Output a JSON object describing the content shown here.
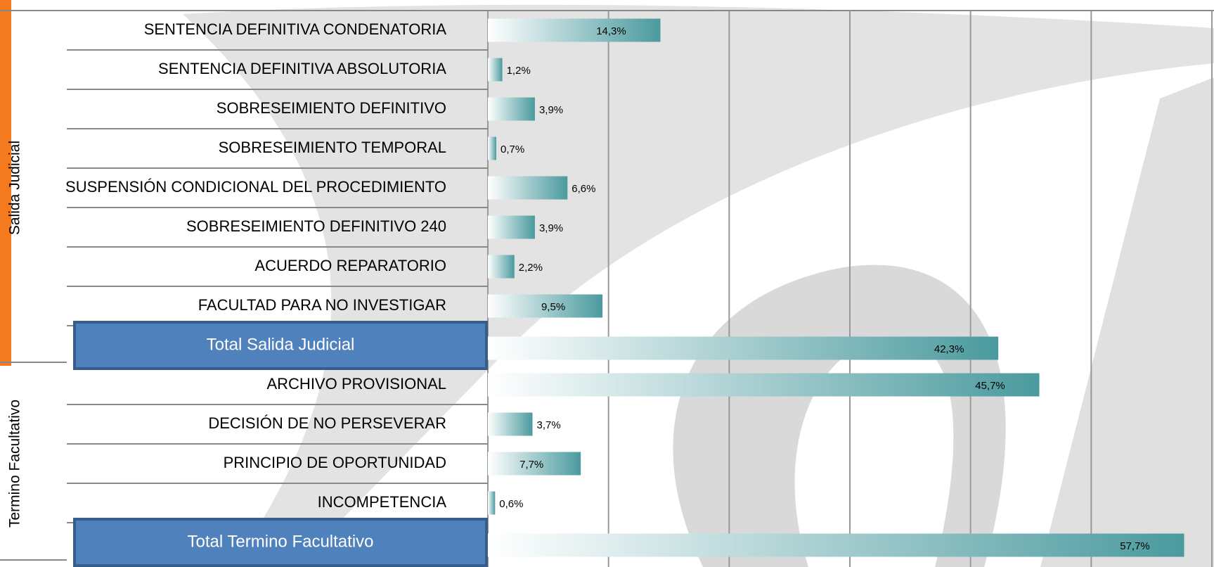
{
  "chart_data": {
    "type": "bar",
    "orientation": "horizontal",
    "color": "#4a9a9e",
    "xlim": [
      0,
      60
    ],
    "xticks": [
      0,
      10,
      20,
      30,
      40,
      50,
      60
    ],
    "grid": true,
    "groups": [
      {
        "name": "Salida Judicial",
        "categories": [
          "SENTENCIA DEFINITIVA CONDENATORIA",
          "SENTENCIA DEFINITIVA ABSOLUTORIA",
          "SOBRESEIMIENTO DEFINITIVO",
          "SOBRESEIMIENTO TEMPORAL",
          "SUSPENSIÓN CONDICIONAL DEL PROCEDIMIENTO",
          "SOBRESEIMIENTO DEFINITIVO 240",
          "ACUERDO REPARATORIO",
          "FACULTAD PARA NO INVESTIGAR"
        ],
        "values": [
          14.3,
          1.2,
          3.9,
          0.7,
          6.6,
          3.9,
          2.2,
          9.5
        ],
        "value_labels": [
          "14,3%",
          "1,2%",
          "3,9%",
          "0,7%",
          "6,6%",
          "3,9%",
          "2,2%",
          "9,5%"
        ],
        "total": {
          "label": "Total Salida Judicial",
          "value": 42.3,
          "value_label": "42,3%"
        }
      },
      {
        "name": "Termino Facultativo",
        "categories": [
          "ARCHIVO PROVISIONAL",
          "DECISIÓN DE NO PERSEVERAR",
          "PRINCIPIO DE OPORTUNIDAD",
          "INCOMPETENCIA"
        ],
        "values": [
          45.7,
          3.7,
          7.7,
          0.6
        ],
        "value_labels": [
          "45,7%",
          "3,7%",
          "7,7%",
          "0,6%"
        ],
        "total": {
          "label": "Total Termino Facultativo",
          "value": 57.7,
          "value_label": "57,7%"
        }
      }
    ]
  }
}
